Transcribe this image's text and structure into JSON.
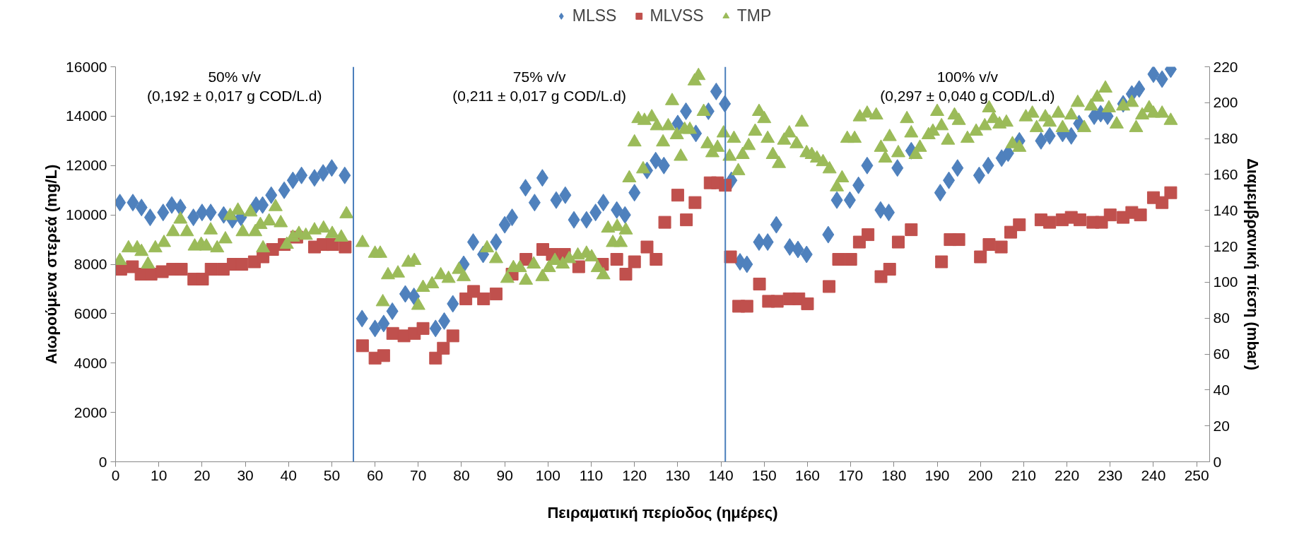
{
  "chart_data": {
    "type": "scatter",
    "xlabel": "Πειραματική περίοδος (ημέρες)",
    "ylabel": "Αιωρούμενα στερεά (mg/L)",
    "y2label": "Διαμεμβρανική πίεση (mbar)",
    "xlim": [
      0,
      253
    ],
    "xticks": [
      0,
      10,
      20,
      30,
      40,
      50,
      60,
      70,
      80,
      90,
      100,
      110,
      120,
      130,
      140,
      150,
      160,
      170,
      180,
      190,
      200,
      210,
      220,
      230,
      240,
      250
    ],
    "ylim": [
      0,
      16000
    ],
    "yticks": [
      0,
      2000,
      4000,
      6000,
      8000,
      10000,
      12000,
      14000,
      16000
    ],
    "y2lim": [
      0,
      220
    ],
    "y2ticks": [
      0,
      20,
      40,
      60,
      80,
      100,
      120,
      140,
      160,
      180,
      200,
      220
    ],
    "grid": false,
    "legend": "top",
    "ref_lines": [
      {
        "axis": "x",
        "value": 55,
        "color": "#4a7ebb"
      },
      {
        "axis": "x",
        "value": 141,
        "color": "#4a7ebb"
      }
    ],
    "annotations": [
      "50% v/v\n(0,192 ± 0,017 g COD/L.d)",
      "75% v/v\n(0,211 ± 0,017 g COD/L.d)",
      "100% v/v\n(0,297 ± 0,040 g COD/L.d)"
    ],
    "series": [
      {
        "name": "MLSS",
        "color": "#4f81bd",
        "marker": "diamond",
        "x": [
          1,
          4,
          6,
          8,
          11,
          13,
          15,
          18,
          20,
          22,
          25,
          27,
          29,
          32.5,
          34,
          36,
          39,
          41,
          43,
          46,
          48,
          50,
          53,
          57,
          60,
          62,
          64,
          67,
          69,
          74,
          76,
          78,
          80.5,
          82.7,
          85,
          88,
          90,
          91.7,
          94.8,
          96.9,
          98.7,
          101.9,
          104,
          106,
          108.9,
          111,
          112.8,
          115.9,
          117.8,
          120,
          122.9,
          124.9,
          126.8,
          130,
          131.9,
          134.2,
          137.1,
          138.9,
          140.9,
          142.4,
          144.4,
          146,
          148.8,
          150.8,
          152.8,
          155.9,
          157.8,
          159.8,
          164.8,
          166.8,
          169.8,
          171.8,
          173.8,
          176.9,
          178.8,
          180.8,
          184,
          190.7,
          192.7,
          194.7,
          199.7,
          201.8,
          204.9,
          206.4,
          209,
          214,
          216,
          219,
          221,
          222.8,
          226.3,
          227.8,
          229.4,
          233,
          235,
          236.7,
          240,
          242,
          244
        ],
        "values": [
          10500,
          10500,
          10300,
          9900,
          10100,
          10400,
          10300,
          9900,
          10100,
          10100,
          10000,
          9800,
          9900,
          10400,
          10400,
          10800,
          11000,
          11400,
          11600,
          11500,
          11700,
          11900,
          11600,
          5800,
          5400,
          5600,
          6100,
          6800,
          6700,
          5400,
          5700,
          6400,
          8000,
          8900,
          8400,
          8900,
          9600,
          9900,
          11100,
          10500,
          11500,
          10600,
          10800,
          9800,
          9800,
          10100,
          10500,
          10200,
          10000,
          10900,
          11800,
          12200,
          12000,
          13700,
          14200,
          13300,
          14200,
          15000,
          14500,
          11400,
          8100,
          8000,
          8900,
          8900,
          9600,
          8700,
          8600,
          8400,
          9200,
          10600,
          10600,
          11200,
          12000,
          10200,
          10100,
          11900,
          12600,
          10900,
          11400,
          11900,
          11600,
          12000,
          12300,
          12500,
          13000,
          13000,
          13200,
          13300,
          13200,
          13700,
          14000,
          14100,
          14000,
          14500,
          14900,
          15100,
          15700,
          15500,
          15900
        ]
      },
      {
        "name": "MLVSS",
        "color": "#c0504d",
        "marker": "square",
        "x": [
          1.2,
          3.9,
          5.9,
          8.2,
          10.8,
          13.2,
          15.2,
          18.1,
          20.1,
          22.1,
          24.9,
          27.2,
          29.2,
          32.1,
          34.1,
          36.3,
          39,
          41.9,
          46,
          48,
          50.2,
          53.1,
          57.1,
          60,
          62,
          64.1,
          66.7,
          69.1,
          71.1,
          74,
          75.8,
          78,
          81,
          82.8,
          85.1,
          88,
          91.7,
          94.9,
          98.8,
          101,
          103.8,
          107.1,
          112.6,
          115.9,
          118,
          120,
          122.9,
          125,
          127,
          130,
          132,
          134,
          137.5,
          139.2,
          141,
          142.2,
          144.1,
          146,
          148.9,
          151,
          153,
          155.8,
          158,
          160,
          165,
          167.2,
          170,
          172,
          174,
          177,
          179,
          181,
          184,
          191,
          193,
          195,
          200,
          202,
          204.8,
          207,
          209,
          214,
          216,
          218.9,
          221,
          223,
          226,
          228,
          230,
          233,
          235,
          237,
          240,
          242,
          244
        ],
        "values": [
          7800,
          7900,
          7600,
          7600,
          7700,
          7800,
          7800,
          7400,
          7400,
          7800,
          7800,
          8000,
          8000,
          8100,
          8300,
          8600,
          8800,
          9100,
          8700,
          8800,
          8800,
          8700,
          4700,
          4200,
          4300,
          5200,
          5100,
          5200,
          5400,
          4200,
          4600,
          5100,
          6600,
          6900,
          6600,
          6800,
          7600,
          8200,
          8600,
          8400,
          8400,
          7900,
          8000,
          8200,
          7600,
          8100,
          8700,
          8200,
          9700,
          10800,
          9800,
          10500,
          11300,
          11300,
          11200,
          8300,
          6300,
          6300,
          7200,
          6500,
          6500,
          6600,
          6600,
          6400,
          7100,
          8200,
          8200,
          8900,
          9200,
          7500,
          7800,
          8900,
          9400,
          8100,
          9000,
          9000,
          8300,
          8800,
          8700,
          9300,
          9600,
          9800,
          9700,
          9800,
          9900,
          9800,
          9700,
          9700,
          10000,
          9900,
          10100,
          10000,
          10700,
          10500,
          10900
        ]
      },
      {
        "name": "TMP",
        "color": "#9bbb59",
        "marker": "triangle",
        "axis": "y2",
        "x": [
          1,
          3,
          5,
          6,
          7.5,
          9.2,
          11.2,
          13.3,
          15,
          16.5,
          18.3,
          19.8,
          21,
          22,
          23.5,
          25.4,
          26.5,
          28.3,
          29.4,
          31.2,
          32.3,
          33.5,
          34.1,
          35.5,
          37,
          38.2,
          39.6,
          41,
          42.4,
          44,
          46,
          48.1,
          50.1,
          52.2,
          53.4,
          57.1,
          60,
          61.2,
          61.8,
          63,
          65.3,
          67.7,
          69.1,
          70,
          71.1,
          73.2,
          75.2,
          77,
          79.4,
          80.5,
          85.9,
          88,
          90.6,
          92,
          93.5,
          94.9,
          96.7,
          98.7,
          100.2,
          101.6,
          103.4,
          104.9,
          106.9,
          108.9,
          110.1,
          111.5,
          112.8,
          113.9,
          115,
          116,
          116.8,
          118,
          118.8,
          120,
          120.9,
          122,
          122.3,
          124,
          125.2,
          126.6,
          127.8,
          128.7,
          129.8,
          130.7,
          131.6,
          132.8,
          133.9,
          134.8,
          136,
          136.9,
          138,
          139.2,
          140.6,
          142,
          143,
          144,
          145,
          146.4,
          147.9,
          148.8,
          150,
          150.8,
          152,
          153.4,
          154.6,
          155.8,
          157.5,
          158.7,
          159.8,
          161,
          162.2,
          163.6,
          165.1,
          166.8,
          168,
          169.2,
          170.9,
          172.1,
          173.8,
          175.9,
          177,
          178,
          179,
          181,
          183,
          184,
          185,
          186,
          188,
          189,
          190,
          191,
          192.5,
          194,
          195,
          197,
          199,
          201,
          202,
          203,
          204.4,
          206,
          207.4,
          209,
          210.5,
          212,
          213,
          215,
          216,
          218,
          219,
          221,
          222.5,
          224,
          225.6,
          227,
          228.9,
          229.7,
          231.5,
          233,
          235,
          236,
          237.4,
          239,
          240,
          242,
          244
        ],
        "values": [
          112,
          119,
          119,
          117,
          110,
          119,
          122,
          128,
          135,
          128,
          120,
          121,
          120,
          129,
          119,
          124,
          137,
          140,
          128,
          139,
          128,
          132,
          119,
          134,
          142,
          133,
          121,
          125,
          127,
          126,
          129,
          130,
          127,
          125,
          138,
          122,
          116,
          116,
          89,
          104,
          105,
          111,
          112,
          87,
          97,
          99,
          104,
          102,
          107,
          103,
          119,
          113,
          102,
          108,
          108,
          101,
          110,
          103,
          108,
          112,
          110,
          113,
          115,
          116,
          114,
          108,
          104,
          130,
          122,
          131,
          122,
          129,
          158,
          178,
          191,
          163,
          190,
          192,
          187,
          178,
          187,
          201,
          182,
          170,
          185,
          185,
          212,
          215,
          195,
          177,
          172,
          175,
          183,
          170,
          180,
          162,
          171,
          176,
          184,
          195,
          191,
          180,
          171,
          166,
          179,
          183,
          177,
          189,
          172,
          171,
          169,
          167,
          163,
          153,
          158,
          180,
          180,
          192,
          194,
          193,
          175,
          169,
          181,
          172,
          191,
          183,
          171,
          175,
          182,
          184,
          195,
          187,
          179,
          193,
          190,
          180,
          184,
          187,
          197,
          191,
          188,
          189,
          177,
          175,
          192,
          194,
          186,
          192,
          189,
          194,
          186,
          193,
          200,
          186,
          198,
          203,
          208,
          197,
          188,
          198,
          200,
          186,
          193,
          197,
          194,
          194,
          190
        ]
      }
    ]
  }
}
